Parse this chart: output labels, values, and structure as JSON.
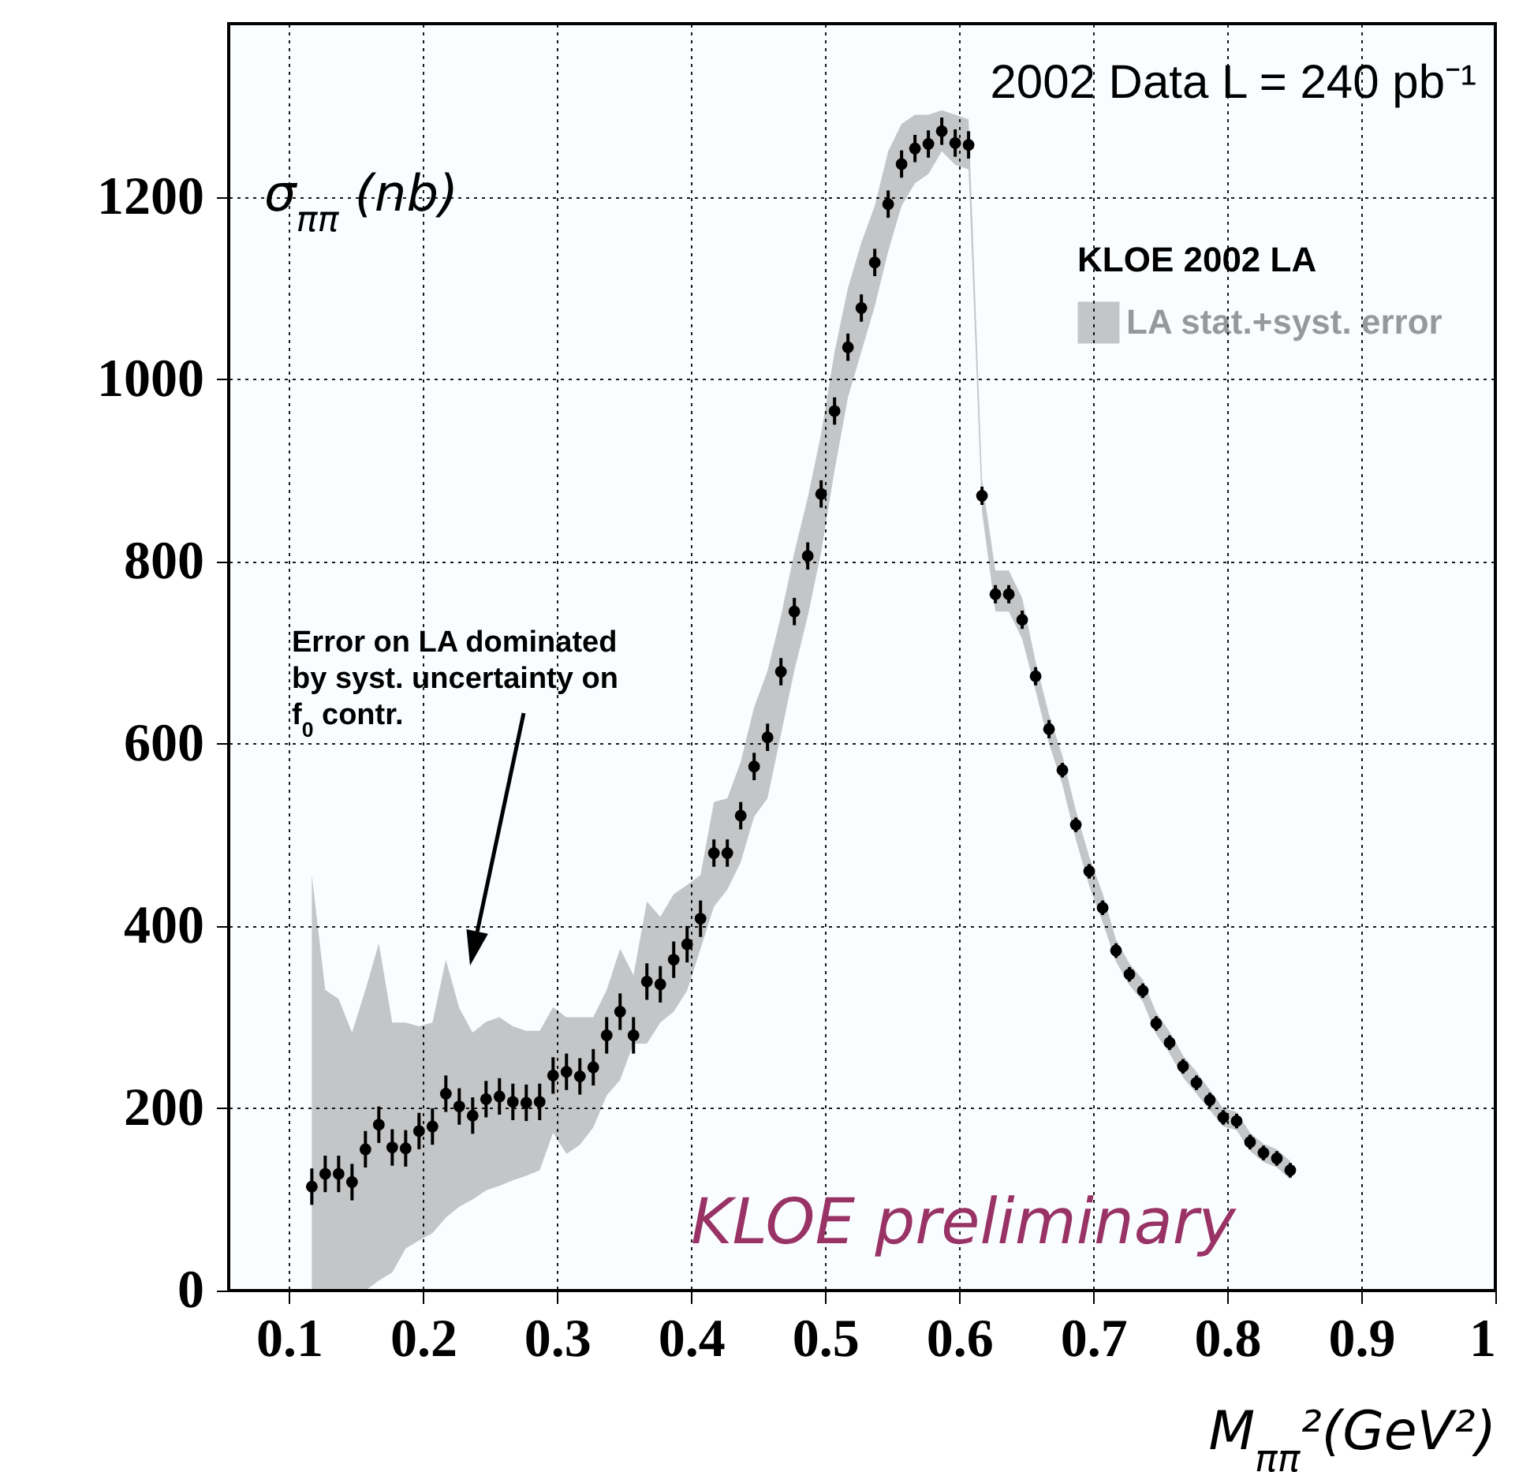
{
  "chart_data": {
    "type": "scatter",
    "title": "2002 Data L = 240 pb⁻¹",
    "xlabel": "M$_{ππ}$²(GeV²)",
    "ylabel": "σ$_{ππ}$ (nb)",
    "legend_title": "KLOE 2002 LA",
    "legend": "top right",
    "grid": true,
    "marker": "circle",
    "xlim": [
      0.055,
      1.0
    ],
    "ylim": [
      0,
      1390
    ],
    "xticks": [
      0.1,
      0.2,
      0.3,
      0.4,
      0.5,
      0.6,
      0.7,
      0.8,
      0.9,
      1
    ],
    "yticks": [
      0,
      200,
      400,
      600,
      800,
      1000,
      1200
    ],
    "x": [
      0.117,
      0.127,
      0.137,
      0.147,
      0.157,
      0.167,
      0.177,
      0.187,
      0.197,
      0.207,
      0.217,
      0.227,
      0.237,
      0.247,
      0.257,
      0.267,
      0.277,
      0.287,
      0.297,
      0.307,
      0.317,
      0.327,
      0.337,
      0.347,
      0.357,
      0.367,
      0.377,
      0.387,
      0.397,
      0.407,
      0.417,
      0.427,
      0.437,
      0.447,
      0.457,
      0.467,
      0.477,
      0.487,
      0.497,
      0.507,
      0.517,
      0.527,
      0.537,
      0.547,
      0.557,
      0.567,
      0.577,
      0.587,
      0.597,
      0.607,
      0.617,
      0.627,
      0.637,
      0.647,
      0.657,
      0.667,
      0.677,
      0.687,
      0.697,
      0.707,
      0.717,
      0.727,
      0.737,
      0.747,
      0.757,
      0.767,
      0.777,
      0.787,
      0.797,
      0.807,
      0.817,
      0.827,
      0.837,
      0.847
    ],
    "series": [
      {
        "name": "LA stat.+syst. error",
        "color": "#000000",
        "values": [
          114,
          128,
          128,
          119,
          155,
          182,
          157,
          156,
          175,
          180,
          216,
          202,
          192,
          210,
          213,
          207,
          206,
          207,
          236,
          240,
          235,
          245,
          280,
          306,
          280,
          339,
          336,
          363,
          380,
          408,
          480,
          480,
          521,
          575,
          607,
          679,
          745,
          806,
          874,
          965,
          1035,
          1078,
          1128,
          1192,
          1236,
          1253,
          1258,
          1272,
          1259,
          1257,
          872,
          764,
          764,
          736,
          674,
          616,
          571,
          511,
          460,
          420,
          373,
          347,
          329,
          293,
          272,
          246,
          228,
          209,
          190,
          186,
          163,
          151,
          145,
          132
        ],
        "errors": [
          20,
          20,
          20,
          20,
          20,
          20,
          20,
          20,
          20,
          20,
          20,
          20,
          20,
          20,
          20,
          20,
          20,
          20,
          20,
          20,
          20,
          20,
          20,
          20,
          20,
          20,
          20,
          20,
          20,
          20,
          15,
          15,
          15,
          15,
          15,
          15,
          15,
          15,
          15,
          15,
          15,
          15,
          15,
          15,
          15,
          15,
          15,
          15,
          15,
          15,
          10,
          10,
          10,
          10,
          10,
          10,
          8,
          8,
          8,
          8,
          8,
          8,
          8,
          8,
          8,
          8,
          8,
          8,
          8,
          8,
          8,
          8,
          8,
          8
        ],
        "lower": [
          0,
          0,
          0,
          0,
          0,
          11,
          20,
          46,
          55,
          63,
          80,
          92,
          100,
          110,
          115,
          121,
          126,
          132,
          173,
          150,
          160,
          179,
          214,
          231,
          271,
          271,
          294,
          306,
          329,
          375,
          421,
          440,
          470,
          520,
          540,
          610,
          680,
          740,
          810,
          900,
          980,
          1030,
          1080,
          1140,
          1190,
          1215,
          1225,
          1250,
          1235,
          1230,
          855,
          745,
          745,
          715,
          658,
          600,
          555,
          495,
          444,
          404,
          361,
          335,
          317,
          281,
          260,
          234,
          216,
          198,
          180,
          176,
          153,
          141,
          135,
          122
        ],
        "upper": [
          456,
          330,
          320,
          283,
          330,
          381,
          294,
          294,
          290,
          294,
          363,
          310,
          283,
          295,
          300,
          290,
          285,
          285,
          311,
          300,
          300,
          300,
          330,
          375,
          346,
          427,
          410,
          435,
          445,
          456,
          536,
          540,
          580,
          640,
          680,
          740,
          810,
          870,
          940,
          1030,
          1100,
          1150,
          1190,
          1250,
          1280,
          1290,
          1290,
          1295,
          1290,
          1285,
          890,
          790,
          790,
          760,
          690,
          632,
          587,
          527,
          476,
          436,
          385,
          359,
          341,
          305,
          284,
          258,
          240,
          220,
          200,
          196,
          173,
          161,
          155,
          142
        ]
      }
    ],
    "annotations": [
      "Error on LA dominated by syst. uncertainty on f$_{0}$ contr.",
      "KLOE preliminary"
    ]
  }
}
